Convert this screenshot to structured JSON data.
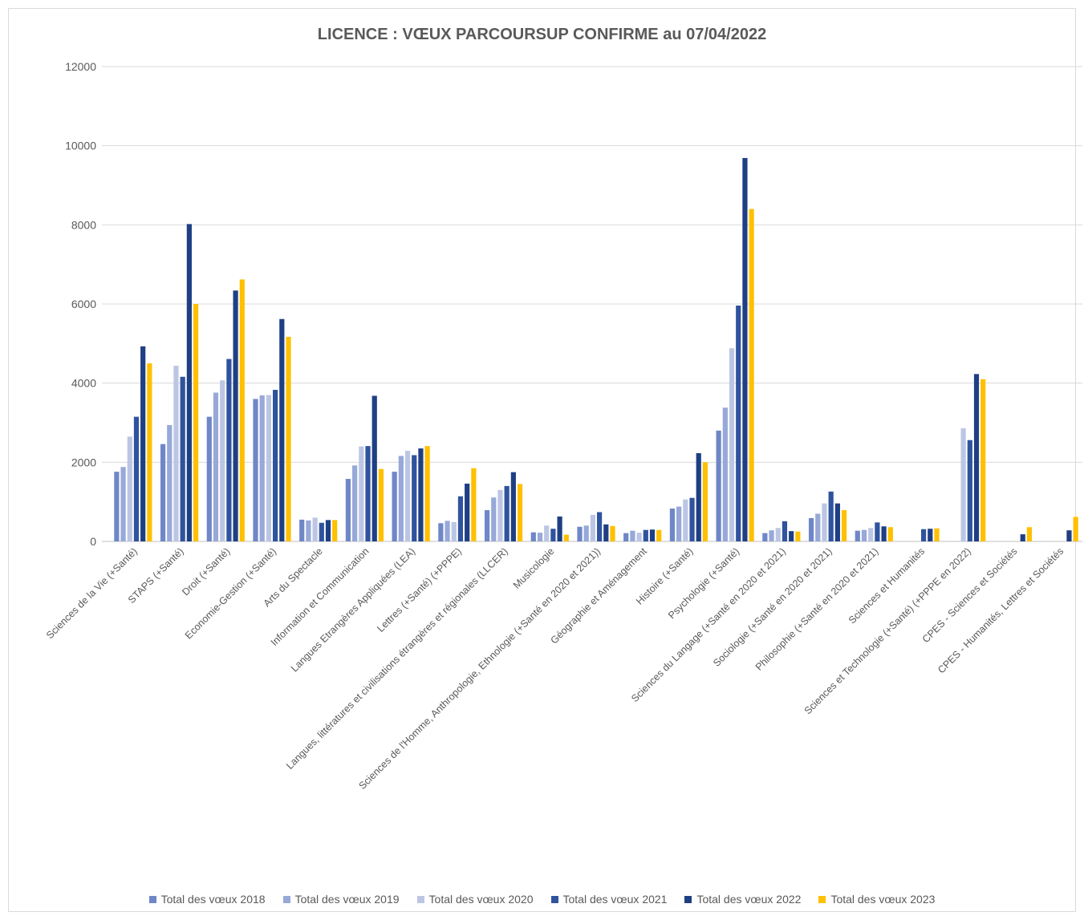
{
  "chart_data": {
    "type": "bar",
    "title": "LICENCE : VŒUX PARCOURSUP CONFIRME au 07/04/2022",
    "xlabel": "",
    "ylabel": "",
    "ylim": [
      0,
      12000
    ],
    "yticks": [
      0,
      2000,
      4000,
      6000,
      8000,
      10000,
      12000
    ],
    "grid": true,
    "legend_position": "bottom",
    "categories": [
      "Sciences de la Vie (+Santé)",
      "STAPS (+Santé)",
      "Droit (+Santé)",
      "Economie-Gestion (+Santé)",
      "Arts du Spectacle",
      "Information et Communication",
      "Langues Etrangères Appliquées (LEA)",
      "Lettres (+Santé) (+PPPE)",
      "Langues, littératures et civilisations étrangères et régionales (LLCER)",
      "Musicologie",
      "Sciences de l'Homme, Anthropologie, Ethnologie (+Santé en 2020 et 2021))",
      "Géographie et Aménagement",
      "Histoire (+Santé)",
      "Psychologie (+Santé)",
      "Sciences du Langage (+Santé en 2020 et 2021)",
      "Sociologie (+Santé en 2020 et 2021)",
      "Philosophie (+Santé en 2020 et 2021)",
      "Sciences et Humanités",
      "Sciences et Technologie (+Santé) (+PPPE en 2022)",
      "CPES - Sciences et Sociétés",
      "CPES - Humanités, Lettres et Sociétés"
    ],
    "series": [
      {
        "name": "Total des vœux 2018",
        "color": "#6f87c7",
        "values": [
          1760,
          2460,
          3150,
          3600,
          550,
          1580,
          1760,
          460,
          790,
          230,
          370,
          210,
          830,
          2800,
          210,
          590,
          270,
          null,
          null,
          null,
          null
        ]
      },
      {
        "name": "Total des vœux 2019",
        "color": "#97a8d9",
        "values": [
          1880,
          2940,
          3760,
          3690,
          530,
          1920,
          2160,
          520,
          1110,
          220,
          400,
          270,
          880,
          3380,
          280,
          700,
          290,
          null,
          null,
          null,
          null
        ]
      },
      {
        "name": "Total des vœux 2020",
        "color": "#bcc6e4",
        "values": [
          2650,
          4440,
          4070,
          3700,
          600,
          2400,
          2290,
          490,
          1300,
          400,
          670,
          220,
          1060,
          4880,
          340,
          960,
          340,
          null,
          2860,
          null,
          null
        ]
      },
      {
        "name": "Total des vœux 2021",
        "color": "#2f539e",
        "values": [
          3150,
          4160,
          4610,
          3830,
          470,
          2410,
          2180,
          1140,
          1400,
          320,
          740,
          290,
          1100,
          5960,
          510,
          1260,
          480,
          310,
          2560,
          null,
          null
        ]
      },
      {
        "name": "Total des vœux 2022",
        "color": "#1f3f84",
        "values": [
          4930,
          8020,
          6340,
          5620,
          540,
          3680,
          2350,
          1460,
          1750,
          630,
          430,
          300,
          2230,
          9690,
          260,
          960,
          380,
          320,
          4230,
          180,
          280
        ]
      },
      {
        "name": "Total des vœux 2023",
        "color": "#ffc000",
        "values": [
          4500,
          6000,
          6620,
          5170,
          540,
          1830,
          2410,
          1850,
          1450,
          170,
          390,
          290,
          2000,
          8400,
          250,
          790,
          360,
          330,
          4100,
          360,
          620
        ]
      }
    ]
  }
}
